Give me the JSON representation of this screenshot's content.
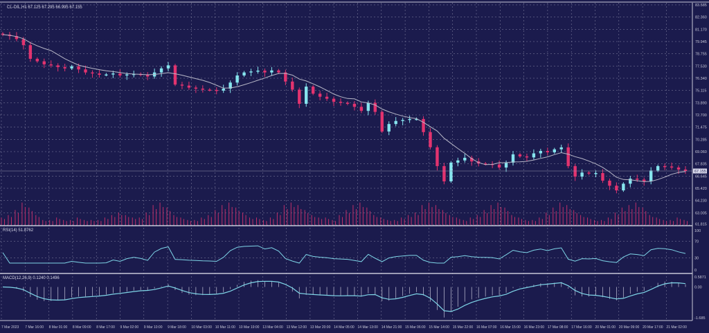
{
  "chart_data": {
    "type": "candlestick",
    "title": "CL-OIL,H1  67.125 67.295 66.995 67.155",
    "symbol": "CL-OIL,H1",
    "ohlc_last": {
      "open": 67.125,
      "high": 67.295,
      "low": 66.995,
      "close": 67.155
    },
    "current_price_label": "67.155",
    "price_ticks": [
      "83.585",
      "82.360",
      "81.170",
      "79.945",
      "78.755",
      "77.530",
      "76.340",
      "75.115",
      "73.890",
      "72.700",
      "71.475",
      "70.285",
      "69.060",
      "67.835",
      "66.645",
      "65.420",
      "64.230",
      "63.005",
      "61.815"
    ],
    "ylim": [
      61.815,
      83.585
    ],
    "time_labels": [
      "7 Mar 2023",
      "7 Mar 16:00",
      "8 Mar 01:00",
      "8 Mar 09:00",
      "8 Mar 17:00",
      "9 Mar 02:00",
      "9 Mar 10:00",
      "9 Mar 18:00",
      "10 Mar 03:00",
      "10 Mar 11:00",
      "10 Mar 19:00",
      "13 Mar 04:00",
      "13 Mar 12:00",
      "13 Mar 20:00",
      "14 Mar 05:00",
      "14 Mar 13:00",
      "14 Mar 21:00",
      "15 Mar 06:00",
      "15 Mar 14:00",
      "15 Mar 22:00",
      "16 Mar 07:00",
      "16 Mar 15:00",
      "16 Mar 23:00",
      "17 Mar 08:00",
      "17 Mar 16:00",
      "20 Mar 01:00",
      "20 Mar 09:00",
      "20 Mar 17:00",
      "21 Mar 02:00"
    ],
    "closes": [
      80.64,
      80.5,
      80.2,
      79.6,
      78.25,
      78.0,
      77.7,
      77.6,
      77.43,
      77.3,
      77.5,
      77.2,
      76.9,
      76.8,
      76.67,
      76.7,
      76.8,
      76.6,
      76.7,
      76.75,
      76.67,
      76.5,
      76.9,
      77.3,
      77.6,
      75.7,
      75.6,
      75.4,
      75.3,
      75.2,
      75.17,
      75.1,
      75.3,
      75.9,
      76.6,
      76.9,
      77.0,
      77.08,
      76.9,
      77.1,
      76.9,
      76.0,
      75.2,
      73.8,
      75.5,
      74.8,
      74.5,
      74.3,
      74.0,
      73.9,
      73.8,
      73.5,
      73.1,
      73.9,
      73.0,
      71.06,
      71.8,
      72.1,
      72.2,
      72.3,
      72.3,
      71.0,
      69.5,
      67.64,
      66.13,
      67.98,
      68.2,
      68.46,
      68.1,
      67.9,
      67.85,
      67.8,
      67.5,
      67.98,
      68.8,
      68.6,
      68.5,
      68.9,
      69.14,
      69.0,
      69.3,
      69.49,
      67.64,
      66.6,
      67.0,
      66.9,
      66.95,
      66.2,
      65.7,
      65.24,
      65.9,
      66.4,
      66.3,
      66.13,
      67.2,
      67.64,
      67.6,
      67.5,
      67.3,
      67.155
    ],
    "volume": [
      3,
      4,
      6,
      9,
      7,
      4,
      2,
      2,
      3,
      2,
      2,
      3,
      2,
      2,
      2,
      3,
      4,
      5,
      4,
      3,
      3,
      5,
      8,
      9,
      7,
      4,
      3,
      2,
      2,
      3,
      4,
      6,
      8,
      9,
      7,
      5,
      3,
      3,
      2,
      3,
      5,
      8,
      9,
      8,
      6,
      4,
      3,
      3,
      2,
      4,
      6,
      8,
      9,
      7,
      4,
      3,
      2,
      2,
      3,
      4,
      5,
      8,
      9,
      8,
      6,
      4,
      3,
      2,
      3,
      4,
      6,
      8,
      9,
      7,
      4,
      3,
      2,
      2,
      3,
      5,
      7,
      9,
      8,
      6,
      4,
      3,
      2,
      2,
      3,
      5,
      7,
      8,
      9,
      7,
      4,
      3,
      2,
      2,
      3,
      2
    ],
    "ma_period": 8,
    "colors": {
      "bull": "#86e4ee",
      "bear": "#e2336f",
      "ma": "#b8b8c8",
      "volume": "#c0306a",
      "indicator": "#7fd6e8",
      "background": "#1b1b4d",
      "grid": "#8a8aa8"
    },
    "rsi": {
      "label": "RSI(14) 51.8762",
      "period": 14,
      "ticks": [
        "100",
        "70",
        "30",
        "0"
      ]
    },
    "macd": {
      "label": "MACD(12,26,9) 0.1240 0.1496",
      "ticks": [
        "0.5871",
        "0.00",
        "-1.685"
      ],
      "ylim": [
        -1.685,
        0.5871
      ]
    }
  }
}
